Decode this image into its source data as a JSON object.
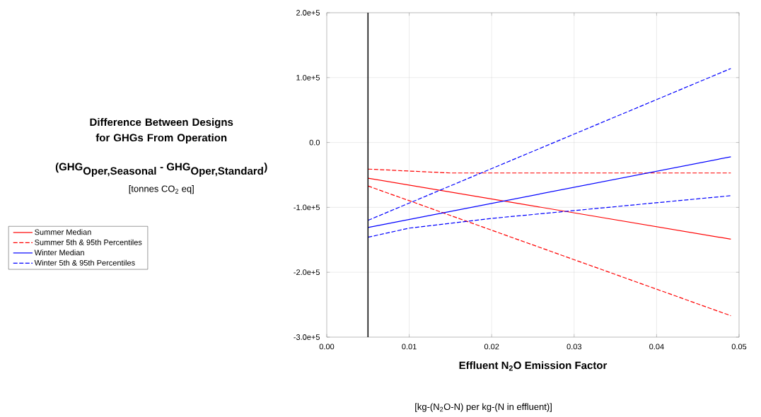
{
  "chart_data": {
    "type": "line",
    "title": "Difference Between Designs for GHGs From Operation",
    "ylabel": "\\textbf{(GHG}_{\\textbf{Oper,Seasonal}}\\textbf{ - GHG}_{\\textbf{Oper,Standard}}\\textbf{)}",
    "xlabel": "Effluent N$_{2}$O Emission Factor",
    "annotations": [
      "[tonnes CO$_{2}$ eq]",
      "[kg-(N$_{2}$O-N) per kg-(N in effluent)]"
    ],
    "series": [
      {
        "name": "Summer Median",
        "color": "#ff0000",
        "line_style": "solid",
        "x": [
          0.005,
          0.049
        ],
        "values": [
          -55000,
          -149000
        ]
      },
      {
        "name": "Summer 5th & 95th Percentiles",
        "color": "#ff0000",
        "line_style": "dashed",
        "x": [
          0.005,
          0.01,
          0.015,
          0.049
        ],
        "values": [
          -41000,
          -44000,
          -47000,
          -47000
        ]
      },
      {
        "color": "#ff0000",
        "line_style": "dashed",
        "x": [
          0.005,
          0.049
        ],
        "values": [
          -67000,
          -267000
        ]
      },
      {
        "name": "Winter Median",
        "color": "#0000ff",
        "line_style": "solid",
        "x": [
          0.005,
          0.049
        ],
        "values": [
          -131000,
          -22000
        ]
      },
      {
        "name": "Winter 5th & 95th Percentiles",
        "color": "#0000ff",
        "line_style": "dashed",
        "x": [
          0.005,
          0.049
        ],
        "values": [
          -120000,
          114000
        ]
      },
      {
        "color": "#0000ff",
        "line_style": "dashed",
        "x": [
          0.005,
          0.01,
          0.02,
          0.049
        ],
        "values": [
          -146000,
          -132000,
          -117000,
          -82000
        ]
      }
    ],
    "xlim": [
      0,
      0.05
    ],
    "xticks": [
      {
        "value": 0,
        "label": "0.00"
      },
      {
        "value": 0.01,
        "label": "0.01"
      },
      {
        "value": 0.02,
        "label": "0.02"
      },
      {
        "value": 0.03,
        "label": "0.03"
      },
      {
        "value": 0.04,
        "label": "0.04"
      },
      {
        "value": 0.05,
        "label": "0.05"
      }
    ],
    "ylim": [
      -300000,
      200000
    ],
    "yticks": [
      {
        "value": -300000,
        "label": "-3.0e+5"
      },
      {
        "value": -200000,
        "label": "-2.0e+5"
      },
      {
        "value": -100000,
        "label": "-1.0e+5"
      },
      {
        "value": 0,
        "label": "0.0"
      },
      {
        "value": 100000,
        "label": "1.0e+5"
      },
      {
        "value": 200000,
        "label": "2.0e+5"
      }
    ],
    "ref_lines": [
      {
        "axis": "x",
        "value": 0.005,
        "color": "#000000"
      }
    ],
    "grid": true,
    "legend": "left",
    "marker": "none"
  }
}
